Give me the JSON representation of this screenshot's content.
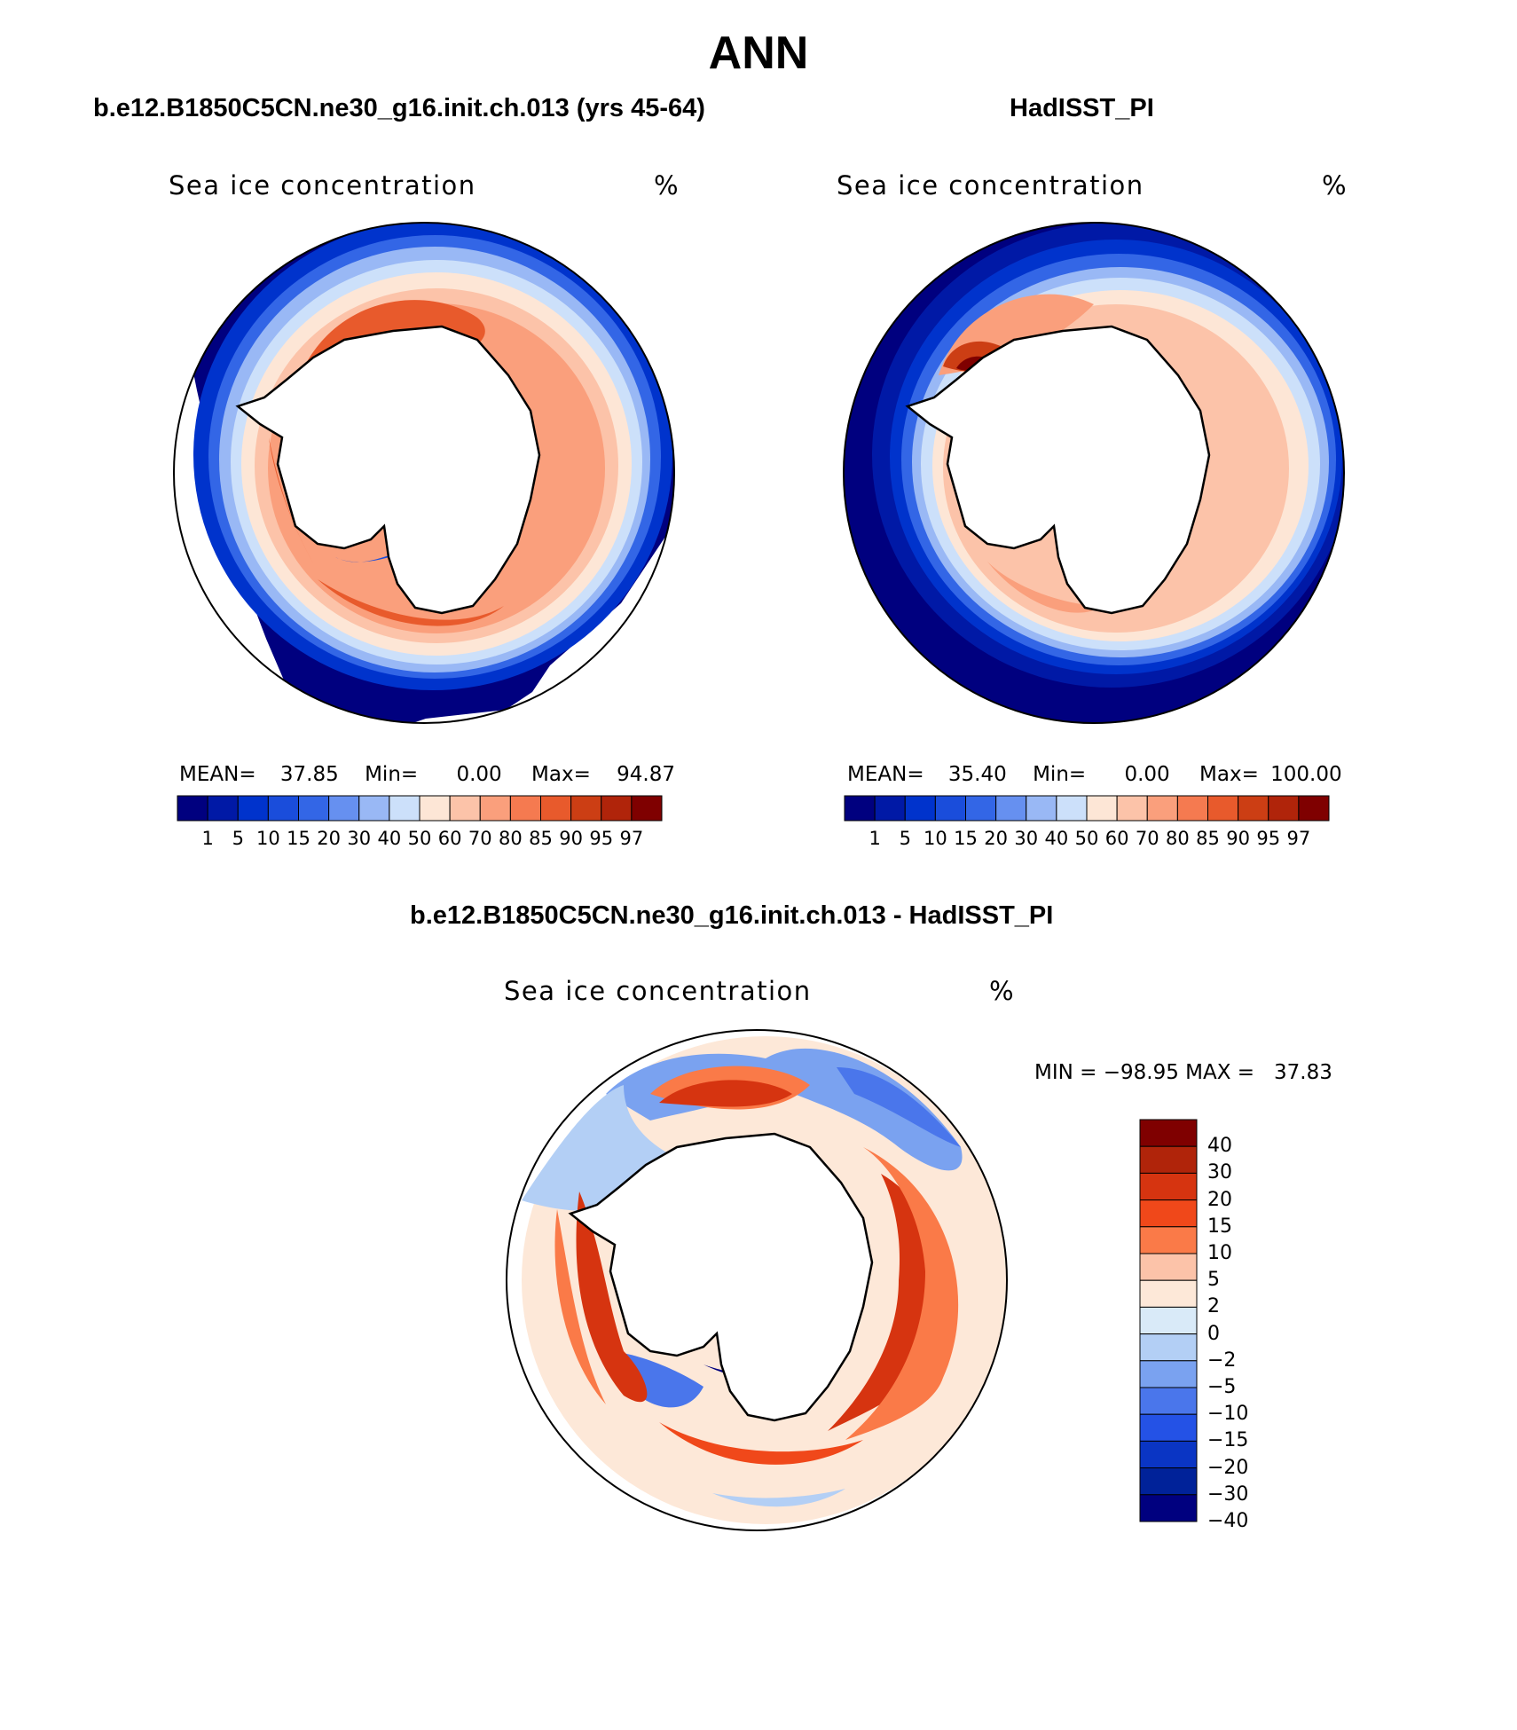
{
  "title": "ANN",
  "panels": {
    "model": {
      "title": "b.e12.B1850C5CN.ne30_g16.init.ch.013 (yrs 45-64)",
      "field": "Sea ice concentration",
      "units": "%",
      "mean_label": "MEAN=",
      "mean": "37.85",
      "min_label": "Min=",
      "min": "0.00",
      "max_label": "Max=",
      "max": "94.87"
    },
    "obs": {
      "title": "HadISST_PI",
      "field": "Sea ice concentration",
      "units": "%",
      "mean_label": "MEAN=",
      "mean": "35.40",
      "min_label": "Min=",
      "min": "0.00",
      "max_label": "Max=",
      "max": "100.00"
    },
    "diff": {
      "title": "b.e12.B1850C5CN.ne30_g16.init.ch.013 - HadISST_PI",
      "field": "Sea ice concentration",
      "units": "%",
      "minmax": "MIN = −98.95 MAX =   37.83"
    }
  },
  "colorbars": {
    "concentration": {
      "labels": [
        "1",
        "5",
        "10",
        "15",
        "20",
        "30",
        "40",
        "50",
        "60",
        "70",
        "80",
        "85",
        "90",
        "95",
        "97"
      ],
      "colors": [
        "#00007f",
        "#0019a6",
        "#0033cc",
        "#1a4ddb",
        "#3366e6",
        "#6690f0",
        "#99b8f5",
        "#cce0fa",
        "#fde6d6",
        "#fcc3a9",
        "#fa9f7c",
        "#f57a50",
        "#e85a2c",
        "#cc3e14",
        "#b0240a",
        "#7f0000"
      ]
    },
    "difference": {
      "labels": [
        "40",
        "30",
        "20",
        "15",
        "10",
        "5",
        "2",
        "0",
        "−2",
        "−5",
        "−10",
        "−15",
        "−20",
        "−30",
        "−40"
      ],
      "colors": [
        "#7f0000",
        "#b0240a",
        "#d63410",
        "#f0481a",
        "#fa7a48",
        "#fcc3a9",
        "#fde8d8",
        "#d9eaf8",
        "#b3cff5",
        "#7aa2f0",
        "#4a76eb",
        "#2452e6",
        "#0a35c4",
        "#002299",
        "#00007f"
      ]
    }
  }
}
